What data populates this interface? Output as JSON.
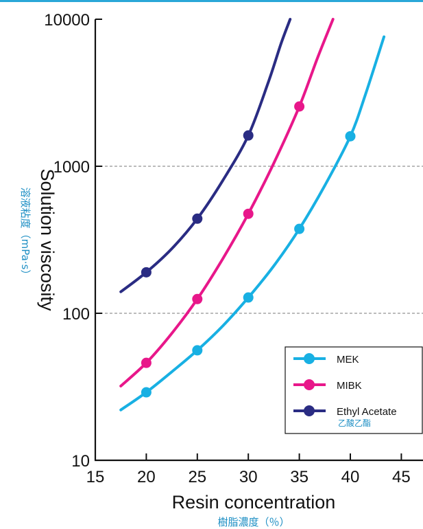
{
  "chart_data": {
    "type": "line",
    "title": "",
    "xlabel": "Resin concentration",
    "xlabel_sub": "樹脂濃度（％）",
    "ylabel": "Solution viscosity",
    "ylabel_sub": "溶液粘度（mPa·s）",
    "xlim": [
      15,
      47
    ],
    "ylim": [
      10,
      10000
    ],
    "y_scale": "log",
    "x_ticks": [
      15,
      20,
      25,
      30,
      35,
      40,
      45
    ],
    "y_ticks": [
      10,
      100,
      1000,
      10000
    ],
    "y_tick_labels": [
      "10",
      "100",
      "1000",
      "10000"
    ],
    "grid": "dashed horizontal at 100 and 1000",
    "legend_position": "bottom-right",
    "series": [
      {
        "name": "MEK",
        "name_sub": "",
        "color": "#18b0e3",
        "points": [
          [
            20,
            29
          ],
          [
            25,
            56
          ],
          [
            30,
            128
          ],
          [
            35,
            375
          ],
          [
            40,
            1600
          ]
        ],
        "curve": [
          [
            17.5,
            22
          ],
          [
            20,
            29
          ],
          [
            22.5,
            40
          ],
          [
            25,
            56
          ],
          [
            27.5,
            82
          ],
          [
            30,
            128
          ],
          [
            32.5,
            210
          ],
          [
            35,
            375
          ],
          [
            37.5,
            740
          ],
          [
            40,
            1600
          ],
          [
            41.5,
            3100
          ],
          [
            43.3,
            7600
          ]
        ]
      },
      {
        "name": "MIBK",
        "name_sub": "",
        "color": "#e8178a",
        "points": [
          [
            20,
            46
          ],
          [
            25,
            125
          ],
          [
            30,
            475
          ],
          [
            35,
            2550
          ]
        ],
        "curve": [
          [
            17.5,
            32
          ],
          [
            20,
            46
          ],
          [
            22.5,
            73
          ],
          [
            25,
            125
          ],
          [
            27.5,
            235
          ],
          [
            30,
            475
          ],
          [
            32.5,
            1050
          ],
          [
            35,
            2550
          ],
          [
            36.8,
            5500
          ],
          [
            38.3,
            10000
          ]
        ]
      },
      {
        "name": "Ethyl Acetate",
        "name_sub": "乙酸乙酯",
        "color": "#2a2c83",
        "points": [
          [
            20,
            190
          ],
          [
            25,
            440
          ],
          [
            30,
            1620
          ]
        ],
        "curve": [
          [
            17.5,
            140
          ],
          [
            20,
            190
          ],
          [
            22.5,
            275
          ],
          [
            25,
            440
          ],
          [
            27.5,
            800
          ],
          [
            30,
            1620
          ],
          [
            32,
            3800
          ],
          [
            33.2,
            6800
          ],
          [
            34.1,
            10000
          ]
        ]
      }
    ]
  }
}
